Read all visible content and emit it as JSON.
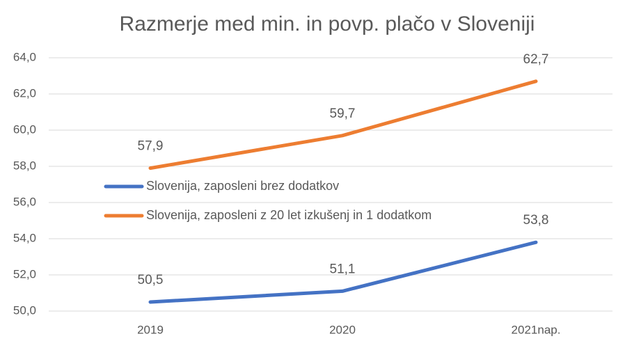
{
  "chart_data": {
    "type": "line",
    "title": "Razmerje med min. in povp. plačo v Sloveniji",
    "categories": [
      "2019",
      "2020",
      "2021nap."
    ],
    "series": [
      {
        "name": "Slovenija, zaposleni brez dodatkov",
        "color": "#4472c4",
        "values": [
          50.5,
          51.1,
          53.8
        ],
        "value_labels": [
          "50,5",
          "51,1",
          "53,8"
        ]
      },
      {
        "name": "Slovenija, zaposleni z 20 let izkušenj in 1 dodatkom",
        "color": "#ed7d31",
        "values": [
          57.9,
          59.7,
          62.7
        ],
        "value_labels": [
          "57,9",
          "59,7",
          "62,7"
        ]
      }
    ],
    "ylim": [
      50,
      64
    ],
    "yticks": [
      {
        "value": 50,
        "label": "50,0"
      },
      {
        "value": 52,
        "label": "52,0"
      },
      {
        "value": 54,
        "label": "54,0"
      },
      {
        "value": 56,
        "label": "56,0"
      },
      {
        "value": 58,
        "label": "58,0"
      },
      {
        "value": 60,
        "label": "60,0"
      },
      {
        "value": 62,
        "label": "62,0"
      },
      {
        "value": 64,
        "label": "64,0"
      }
    ],
    "grid": true,
    "legend": "left"
  }
}
